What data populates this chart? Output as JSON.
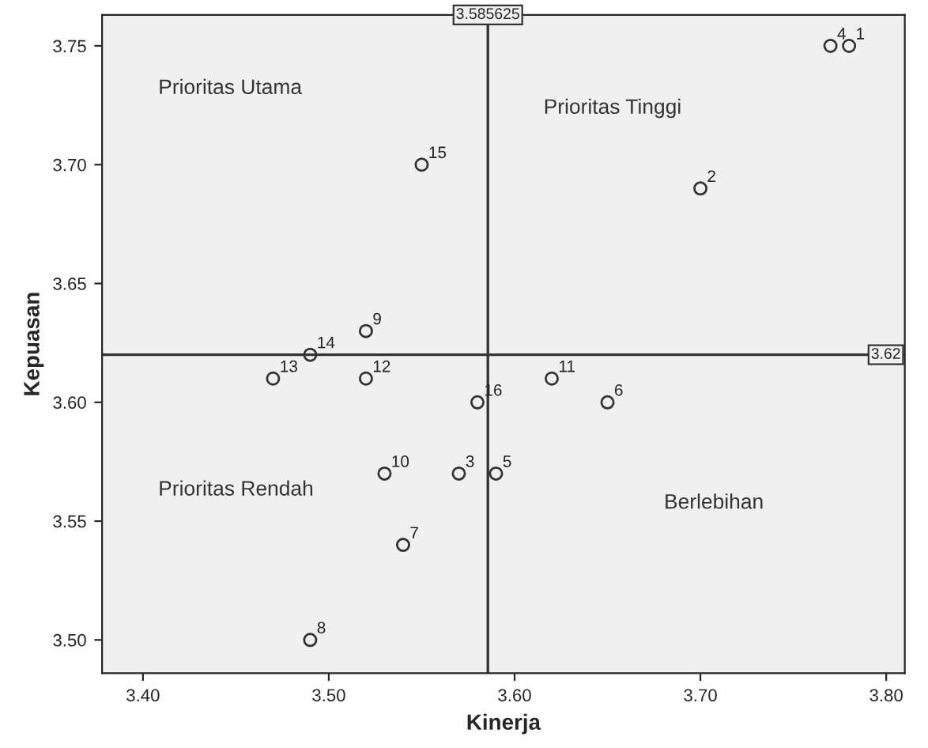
{
  "chart_data": {
    "type": "scatter",
    "xlabel": "Kinerja",
    "ylabel": "Kepuasan",
    "x": [
      3.78,
      3.7,
      3.57,
      3.77,
      3.59,
      3.65,
      3.54,
      3.49,
      3.52,
      3.53,
      3.62,
      3.52,
      3.47,
      3.49,
      3.55,
      3.58
    ],
    "series": [
      {
        "color": "#333333",
        "values": [
          3.75,
          3.69,
          3.57,
          3.75,
          3.57,
          3.6,
          3.54,
          3.5,
          3.63,
          3.57,
          3.61,
          3.61,
          3.61,
          3.62,
          3.7,
          3.6
        ]
      }
    ],
    "marker": "circle",
    "grid": false,
    "legend": false,
    "xlim": [
      3.378,
      3.81
    ],
    "ylim": [
      3.486,
      3.763
    ],
    "xticks": [
      {
        "value": 3.4,
        "label": "3.40"
      },
      {
        "value": 3.5,
        "label": "3.50"
      },
      {
        "value": 3.6,
        "label": "3.60"
      },
      {
        "value": 3.7,
        "label": "3.70"
      },
      {
        "value": 3.8,
        "label": "3.80"
      }
    ],
    "yticks": [
      {
        "value": 3.5,
        "label": "3.50"
      },
      {
        "value": 3.55,
        "label": "3.55"
      },
      {
        "value": 3.6,
        "label": "3.60"
      },
      {
        "value": 3.65,
        "label": "3.65"
      },
      {
        "value": 3.7,
        "label": "3.70"
      },
      {
        "value": 3.75,
        "label": "3.75"
      }
    ],
    "ref_lines": [
      {
        "axis": "x",
        "value": 3.585625,
        "label": "3.585625",
        "color": "#333333"
      },
      {
        "axis": "y",
        "value": 3.62,
        "label": "3.62",
        "color": "#333333"
      }
    ],
    "annotations": [
      "Prioritas Utama",
      "Prioritas Tinggi",
      "Prioritas Rendah",
      "Berlebihan",
      {
        "text": "1",
        "x": 3.78,
        "y": 3.75
      },
      {
        "text": "2",
        "x": 3.7,
        "y": 3.69
      },
      {
        "text": "3",
        "x": 3.57,
        "y": 3.57
      },
      {
        "text": "4",
        "x": 3.77,
        "y": 3.75
      },
      {
        "text": "5",
        "x": 3.59,
        "y": 3.57
      },
      {
        "text": "6",
        "x": 3.65,
        "y": 3.6
      },
      {
        "text": "7",
        "x": 3.54,
        "y": 3.54
      },
      {
        "text": "8",
        "x": 3.49,
        "y": 3.5
      },
      {
        "text": "9",
        "x": 3.52,
        "y": 3.63
      },
      {
        "text": "10",
        "x": 3.53,
        "y": 3.57
      },
      {
        "text": "11",
        "x": 3.62,
        "y": 3.61
      },
      {
        "text": "12",
        "x": 3.52,
        "y": 3.61
      },
      {
        "text": "13",
        "x": 3.47,
        "y": 3.61
      },
      {
        "text": "14",
        "x": 3.49,
        "y": 3.62
      },
      {
        "text": "15",
        "x": 3.55,
        "y": 3.7
      },
      {
        "text": "16",
        "x": 3.58,
        "y": 3.6
      }
    ]
  }
}
